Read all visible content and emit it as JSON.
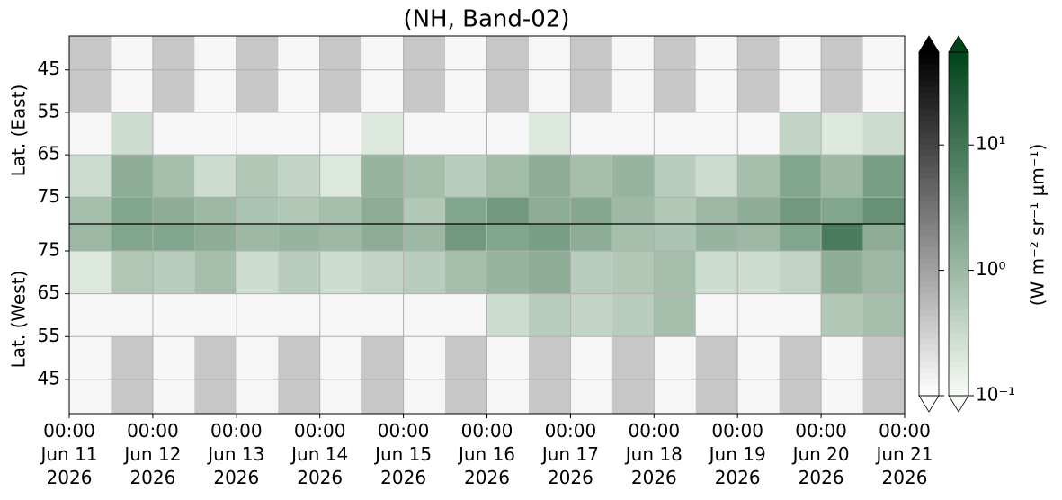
{
  "chart_data": {
    "type": "heatmap",
    "title": "(NH, Band-02)",
    "grid": true,
    "xlim": [
      0,
      240
    ],
    "xticks": [
      {
        "value": 0,
        "label": "00:00\nJun 11\n2026"
      },
      {
        "value": 24,
        "label": "00:00\nJun 12\n2026"
      },
      {
        "value": 48,
        "label": "00:00\nJun 13\n2026"
      },
      {
        "value": 72,
        "label": "00:00\nJun 14\n2026"
      },
      {
        "value": 96,
        "label": "00:00\nJun 15\n2026"
      },
      {
        "value": 120,
        "label": "00:00\nJun 16\n2026"
      },
      {
        "value": 144,
        "label": "00:00\nJun 17\n2026"
      },
      {
        "value": 168,
        "label": "00:00\nJun 18\n2026"
      },
      {
        "value": 192,
        "label": "00:00\nJun 19\n2026"
      },
      {
        "value": 216,
        "label": "00:00\nJun 20\n2026"
      },
      {
        "value": 240,
        "label": "00:00\nJun 21\n2026"
      }
    ],
    "xbins": [
      0,
      12,
      24,
      36,
      48,
      60,
      72,
      84,
      96,
      108,
      120,
      132,
      144,
      156,
      168,
      180,
      192,
      204,
      216,
      228,
      240
    ],
    "panels": [
      {
        "ylabel": "Lat. (East)",
        "ylim": [
          81.3,
          37
        ],
        "yticks": [
          45,
          55,
          65,
          75
        ],
        "ybins": [
          37,
          45,
          55,
          65,
          75,
          81.3
        ],
        "green": [
          [
            null,
            null,
            null,
            null,
            null,
            null,
            null,
            null,
            null,
            null,
            null,
            null,
            null,
            null,
            null,
            null,
            null,
            null,
            null,
            null
          ],
          [
            null,
            null,
            null,
            null,
            null,
            null,
            null,
            null,
            null,
            null,
            null,
            null,
            null,
            null,
            null,
            null,
            null,
            null,
            null,
            null
          ],
          [
            null,
            0.3,
            null,
            null,
            null,
            null,
            null,
            0.2,
            null,
            null,
            null,
            0.2,
            null,
            null,
            null,
            null,
            null,
            0.4,
            0.2,
            0.3
          ],
          [
            0.3,
            1.5,
            0.8,
            0.3,
            0.6,
            0.4,
            0.2,
            1.2,
            0.8,
            0.5,
            0.9,
            1.5,
            0.8,
            1.2,
            0.5,
            0.3,
            0.8,
            2,
            1,
            2.5
          ],
          [
            0.8,
            2,
            1.5,
            1,
            0.7,
            0.6,
            0.8,
            1.5,
            0.6,
            2,
            3,
            1.5,
            1.8,
            1,
            0.6,
            1,
            1.5,
            3,
            2,
            4
          ]
        ],
        "gray": [
          [
            0.4,
            null,
            0.4,
            null,
            0.4,
            null,
            0.4,
            null,
            0.4,
            null,
            0.4,
            null,
            0.4,
            null,
            0.4,
            null,
            0.4,
            null,
            0.4,
            null
          ],
          [
            0.4,
            null,
            0.4,
            null,
            0.4,
            null,
            0.4,
            null,
            0.4,
            null,
            0.4,
            null,
            0.4,
            null,
            0.4,
            null,
            0.4,
            null,
            0.4,
            null
          ],
          [
            null,
            null,
            null,
            null,
            null,
            null,
            null,
            null,
            null,
            null,
            null,
            null,
            null,
            null,
            null,
            null,
            null,
            null,
            null,
            null
          ],
          [
            null,
            null,
            null,
            null,
            null,
            null,
            null,
            null,
            null,
            null,
            null,
            null,
            null,
            null,
            null,
            null,
            null,
            null,
            null,
            null
          ],
          [
            null,
            null,
            null,
            null,
            null,
            null,
            null,
            null,
            null,
            null,
            null,
            null,
            null,
            null,
            null,
            null,
            null,
            null,
            null,
            null
          ]
        ]
      },
      {
        "ylabel": "Lat. (West)",
        "ylim": [
          37,
          81.3
        ],
        "yticks": [
          75,
          65,
          55,
          45
        ],
        "ybins": [
          37,
          45,
          55,
          65,
          75,
          81.3
        ],
        "green": [
          [
            null,
            null,
            null,
            null,
            null,
            null,
            null,
            null,
            null,
            null,
            null,
            null,
            null,
            null,
            null,
            null,
            null,
            null,
            null,
            null
          ],
          [
            null,
            null,
            null,
            null,
            null,
            null,
            null,
            null,
            null,
            null,
            null,
            null,
            null,
            null,
            null,
            null,
            null,
            null,
            null,
            null
          ],
          [
            null,
            null,
            null,
            null,
            null,
            null,
            null,
            null,
            null,
            null,
            0.3,
            0.5,
            0.4,
            0.5,
            0.8,
            null,
            null,
            null,
            0.6,
            0.8
          ],
          [
            0.2,
            0.6,
            0.5,
            0.8,
            0.3,
            0.5,
            0.3,
            0.4,
            0.5,
            0.8,
            1.2,
            1.5,
            0.5,
            0.6,
            0.8,
            0.3,
            0.3,
            0.4,
            1.5,
            1
          ],
          [
            1,
            2,
            2,
            1.5,
            1,
            1.2,
            1,
            1.5,
            1,
            3,
            2,
            2.5,
            1.5,
            0.8,
            0.7,
            1.2,
            1,
            2,
            8,
            1.5
          ]
        ],
        "gray": [
          [
            null,
            0.4,
            null,
            0.4,
            null,
            0.4,
            null,
            0.4,
            null,
            0.4,
            null,
            0.4,
            null,
            0.4,
            null,
            0.4,
            null,
            0.4,
            null,
            0.4
          ],
          [
            null,
            0.4,
            null,
            0.4,
            null,
            0.4,
            null,
            0.4,
            null,
            0.4,
            null,
            0.4,
            null,
            0.4,
            null,
            0.4,
            null,
            0.4,
            null,
            0.4
          ],
          [
            null,
            null,
            null,
            null,
            null,
            null,
            null,
            null,
            null,
            null,
            null,
            null,
            null,
            null,
            null,
            null,
            null,
            null,
            null,
            null
          ],
          [
            null,
            null,
            null,
            null,
            null,
            null,
            null,
            null,
            null,
            null,
            null,
            null,
            null,
            null,
            null,
            null,
            null,
            null,
            null,
            null
          ],
          [
            null,
            null,
            null,
            null,
            null,
            null,
            null,
            null,
            null,
            null,
            null,
            null,
            null,
            null,
            null,
            null,
            null,
            null,
            null,
            null
          ]
        ]
      }
    ],
    "colorbar": {
      "label": "(W m⁻² sr⁻¹ μm⁻¹)",
      "log": true,
      "lim": [
        0.1,
        55
      ],
      "ticks": [
        {
          "value": 0.1,
          "label": "10⁻¹"
        },
        {
          "value": 1,
          "label": "10⁰"
        },
        {
          "value": 10,
          "label": "10¹"
        }
      ],
      "colors": {
        "gray": [
          "#ffffff",
          "#000000"
        ],
        "green": [
          "#f7fcf5",
          "#00441b"
        ]
      }
    }
  }
}
